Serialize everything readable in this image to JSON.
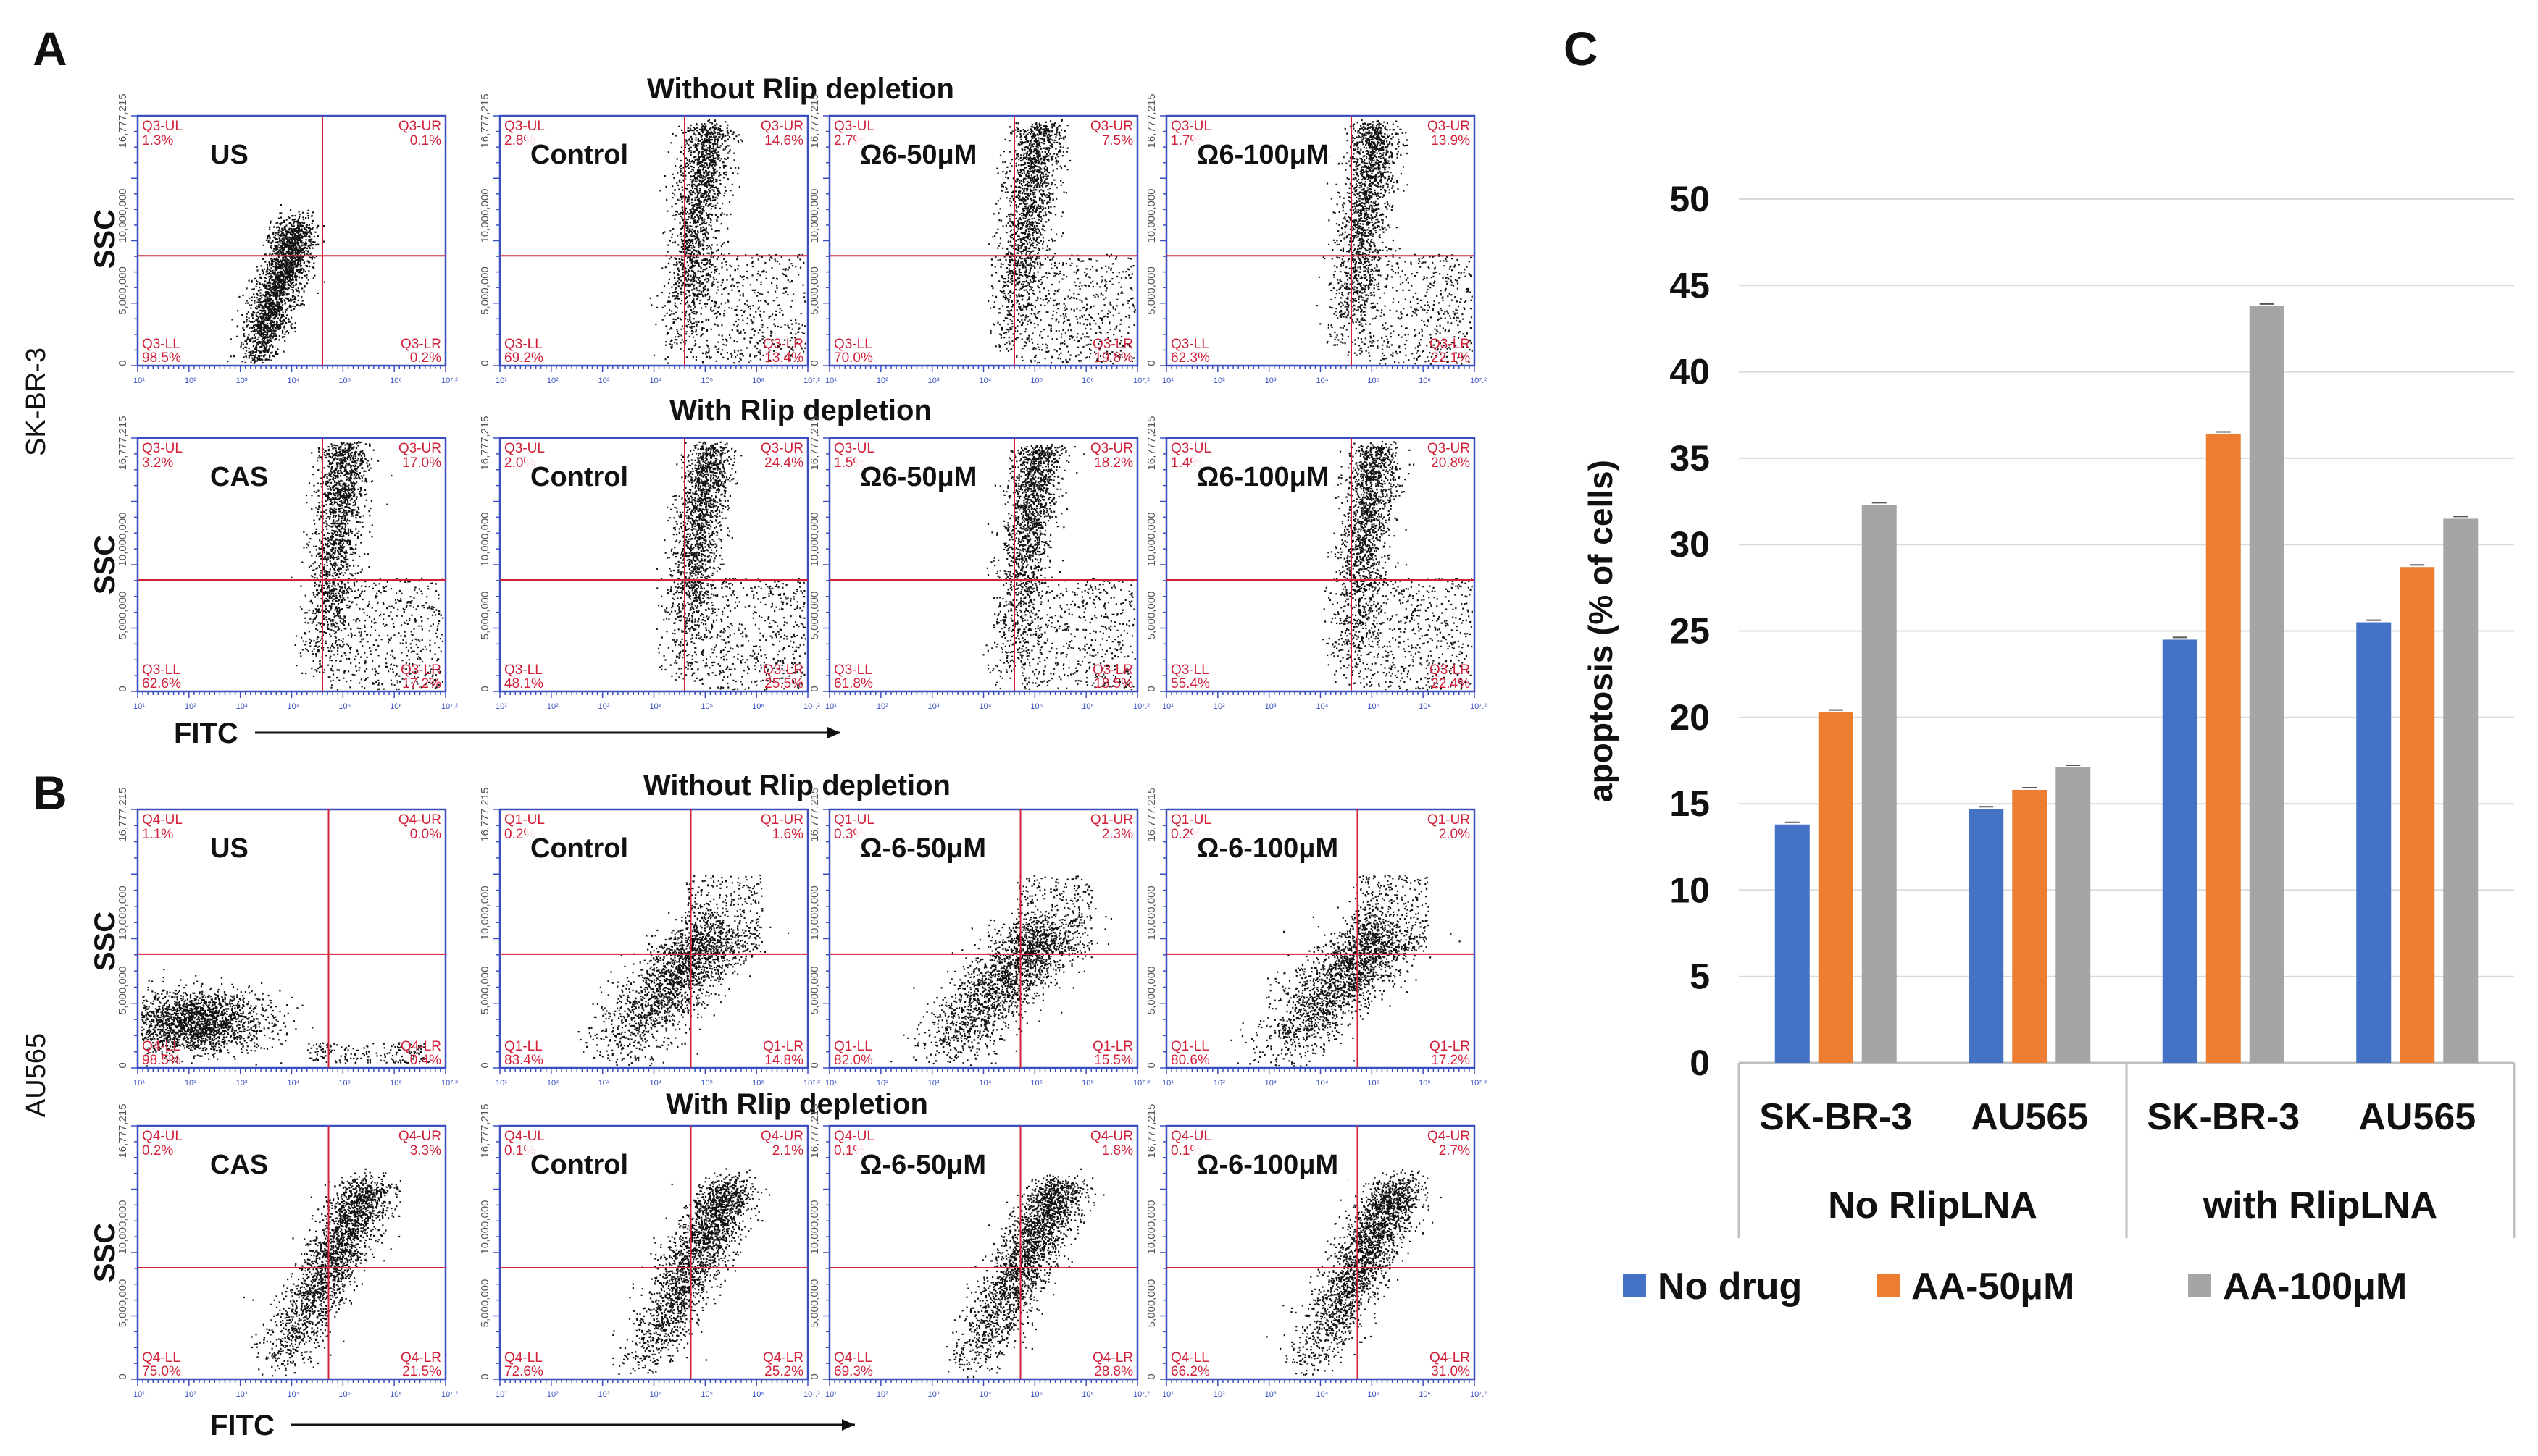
{
  "panels": {
    "A": "A",
    "B": "B",
    "C": "C"
  },
  "flow": {
    "A": {
      "cell_line": "SK-BR-3",
      "y_axis": "SSC",
      "x_axis": "FITC",
      "rows": [
        {
          "title": "Without Rlip depletion",
          "plots": [
            {
              "name": "US",
              "ul": "Q3-UL",
              "ul_val": "1.3%",
              "ur": "Q3-UR",
              "ur_val": "0.1%",
              "ll": "Q3-LL",
              "ll_val": "98.5%",
              "lr": "Q3-LR",
              "lr_val": "0.2%"
            },
            {
              "name": "Control",
              "ul": "Q3-UL",
              "ul_val": "2.8%",
              "ur": "Q3-UR",
              "ur_val": "14.6%",
              "ll": "Q3-LL",
              "ll_val": "69.2%",
              "lr": "Q3-LR",
              "lr_val": "13.4%"
            },
            {
              "name": "Ω6-50μM",
              "ul": "Q3-UL",
              "ul_val": "2.7%",
              "ur": "Q3-UR",
              "ur_val": "7.5%",
              "ll": "Q3-LL",
              "ll_val": "70.0%",
              "lr": "Q3-LR",
              "lr_val": "19.8%"
            },
            {
              "name": "Ω6-100μM",
              "ul": "Q3-UL",
              "ul_val": "1.7%",
              "ur": "Q3-UR",
              "ur_val": "13.9%",
              "ll": "Q3-LL",
              "ll_val": "62.3%",
              "lr": "Q3-LR",
              "lr_val": "22.1%"
            }
          ]
        },
        {
          "title": "With Rlip depletion",
          "plots": [
            {
              "name": "CAS",
              "ul": "Q3-UL",
              "ul_val": "3.2%",
              "ur": "Q3-UR",
              "ur_val": "17.0%",
              "ll": "Q3-LL",
              "ll_val": "62.6%",
              "lr": "Q3-LR",
              "lr_val": "17.2%"
            },
            {
              "name": "Control",
              "ul": "Q3-UL",
              "ul_val": "2.0%",
              "ur": "Q3-UR",
              "ur_val": "24.4%",
              "ll": "Q3-LL",
              "ll_val": "48.1%",
              "lr": "Q3-LR",
              "lr_val": "25.5%"
            },
            {
              "name": "Ω6-50μM",
              "ul": "Q3-UL",
              "ul_val": "1.5%",
              "ur": "Q3-UR",
              "ur_val": "18.2%",
              "ll": "Q3-LL",
              "ll_val": "61.8%",
              "lr": "Q3-LR",
              "lr_val": "18.5%"
            },
            {
              "name": "Ω6-100μM",
              "ul": "Q3-UL",
              "ul_val": "1.4%",
              "ur": "Q3-UR",
              "ur_val": "20.8%",
              "ll": "Q3-LL",
              "ll_val": "55.4%",
              "lr": "Q3-LR",
              "lr_val": "22.4%"
            }
          ]
        }
      ]
    },
    "B": {
      "cell_line": "AU565",
      "y_axis": "SSC",
      "x_axis": "FITC",
      "rows": [
        {
          "title": "Without Rlip depletion",
          "plots": [
            {
              "name": "US",
              "ul": "Q4-UL",
              "ul_val": "1.1%",
              "ur": "Q4-UR",
              "ur_val": "0.0%",
              "ll": "Q4-LL",
              "ll_val": "98.5%",
              "lr": "Q4-LR",
              "lr_val": "0.4%"
            },
            {
              "name": "Control",
              "ul": "Q1-UL",
              "ul_val": "0.2%",
              "ur": "Q1-UR",
              "ur_val": "1.6%",
              "ll": "Q1-LL",
              "ll_val": "83.4%",
              "lr": "Q1-LR",
              "lr_val": "14.8%"
            },
            {
              "name": "Ω-6-50μM",
              "ul": "Q1-UL",
              "ul_val": "0.3%",
              "ur": "Q1-UR",
              "ur_val": "2.3%",
              "ll": "Q1-LL",
              "ll_val": "82.0%",
              "lr": "Q1-LR",
              "lr_val": "15.5%"
            },
            {
              "name": "Ω-6-100μM",
              "ul": "Q1-UL",
              "ul_val": "0.2%",
              "ur": "Q1-UR",
              "ur_val": "2.0%",
              "ll": "Q1-LL",
              "ll_val": "80.6%",
              "lr": "Q1-LR",
              "lr_val": "17.2%"
            }
          ]
        },
        {
          "title": "With Rlip depletion",
          "plots": [
            {
              "name": "CAS",
              "ul": "Q4-UL",
              "ul_val": "0.2%",
              "ur": "Q4-UR",
              "ur_val": "3.3%",
              "ll": "Q4-LL",
              "ll_val": "75.0%",
              "lr": "Q4-LR",
              "lr_val": "21.5%"
            },
            {
              "name": "Control",
              "ul": "Q4-UL",
              "ul_val": "0.1%",
              "ur": "Q4-UR",
              "ur_val": "2.1%",
              "ll": "Q4-LL",
              "ll_val": "72.6%",
              "lr": "Q4-LR",
              "lr_val": "25.2%"
            },
            {
              "name": "Ω-6-50μM",
              "ul": "Q4-UL",
              "ul_val": "0.1%",
              "ur": "Q4-UR",
              "ur_val": "1.8%",
              "ll": "Q4-LL",
              "ll_val": "69.3%",
              "lr": "Q4-LR",
              "lr_val": "28.8%"
            },
            {
              "name": "Ω-6-100μM",
              "ul": "Q4-UL",
              "ul_val": "0.1%",
              "ur": "Q4-UR",
              "ur_val": "2.7%",
              "ll": "Q4-LL",
              "ll_val": "66.2%",
              "lr": "Q4-LR",
              "lr_val": "31.0%"
            }
          ]
        }
      ]
    },
    "y_ticks": [
      "16,777,215",
      "10,000,000",
      "5,000,000",
      "0"
    ],
    "x_ticks": [
      "10¹",
      "10²",
      "10³",
      "10⁴",
      "10⁵",
      "10⁶",
      "10⁷.²"
    ]
  },
  "chart_data": {
    "type": "bar",
    "title": "",
    "xlabel": "",
    "ylabel": "apoptosis (% of cells)",
    "ylim": [
      0,
      50
    ],
    "yticks": [
      0,
      5,
      10,
      15,
      20,
      25,
      30,
      35,
      40,
      45,
      50
    ],
    "categories": [
      "SK-BR-3",
      "AU565",
      "SK-BR-3",
      "AU565"
    ],
    "groups": [
      {
        "label": "No RlipLNA",
        "categories": [
          "SK-BR-3",
          "AU565"
        ]
      },
      {
        "label": "with RlipLNA",
        "categories": [
          "SK-BR-3",
          "AU565"
        ]
      }
    ],
    "series": [
      {
        "name": "No drug",
        "color": "#4472c4",
        "values": [
          13.8,
          14.7,
          24.5,
          25.5
        ]
      },
      {
        "name": "AA-50μM",
        "color": "#ed7d31",
        "values": [
          20.3,
          15.8,
          36.4,
          28.7
        ]
      },
      {
        "name": "AA-100μM",
        "color": "#a5a5a5",
        "values": [
          32.3,
          17.1,
          43.8,
          31.5
        ]
      }
    ],
    "legend_position": "bottom",
    "grid": true
  }
}
